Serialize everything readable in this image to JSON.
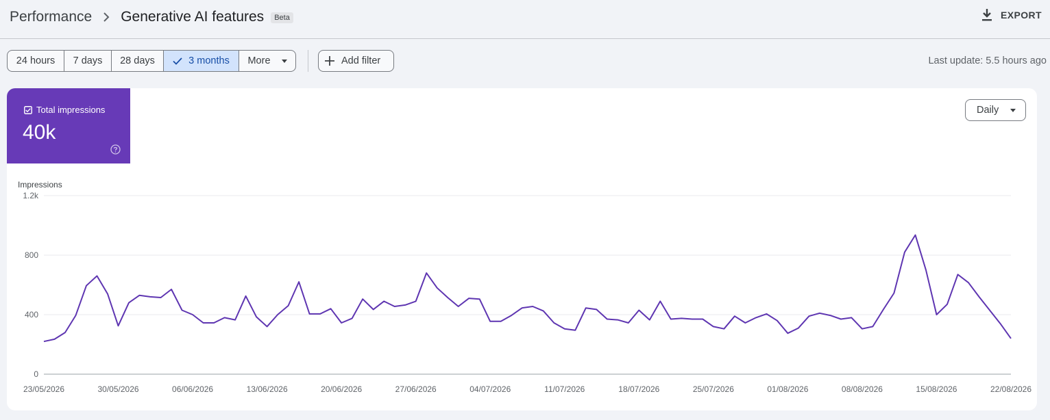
{
  "header": {
    "breadcrumb_root": "Performance",
    "title": "Generative AI features",
    "badge": "Beta",
    "export_label": "EXPORT"
  },
  "filters": {
    "ranges": [
      {
        "label": "24 hours",
        "active": false
      },
      {
        "label": "7 days",
        "active": false
      },
      {
        "label": "28 days",
        "active": false
      },
      {
        "label": "3 months",
        "active": true
      },
      {
        "label": "More",
        "active": false
      }
    ],
    "add_filter_label": "Add filter",
    "last_update": "Last update: 5.5 hours ago"
  },
  "metric": {
    "label": "Total impressions",
    "value": "40k",
    "checked": true,
    "color": "#673ab7"
  },
  "granularity": {
    "selected": "Daily"
  },
  "icons": [
    "chevron-right-icon",
    "download-icon",
    "check-icon",
    "caret-down-icon",
    "plus-icon",
    "checkbox-icon",
    "help-icon"
  ],
  "chart_data": {
    "type": "line",
    "ylabel": "Impressions",
    "ylim": [
      0,
      1200
    ],
    "yticks": [
      0,
      400,
      800,
      1200
    ],
    "ytick_labels": [
      "0",
      "400",
      "800",
      "1.2k"
    ],
    "xtick_labels": [
      "23/05/2026",
      "30/05/2026",
      "06/06/2026",
      "13/06/2026",
      "20/06/2026",
      "27/06/2026",
      "04/07/2026",
      "11/07/2026",
      "18/07/2026",
      "25/07/2026",
      "01/08/2026",
      "08/08/2026",
      "15/08/2026",
      "22/08/2026"
    ],
    "x_start": "23/05/2026",
    "x_end": "22/08/2026",
    "grid": true,
    "color": "#5e35b1",
    "series": [
      {
        "values": [
          220,
          235,
          280,
          395,
          595,
          660,
          540,
          325,
          480,
          530,
          520,
          515,
          570,
          430,
          400,
          345,
          345,
          380,
          365,
          525,
          385,
          320,
          400,
          460,
          620,
          405,
          405,
          440,
          345,
          375,
          505,
          435,
          490,
          455,
          465,
          490,
          680,
          580,
          515,
          455,
          510,
          505,
          355,
          355,
          395,
          445,
          455,
          425,
          345,
          305,
          295,
          445,
          435,
          370,
          365,
          345,
          430,
          365,
          490,
          370,
          375,
          370,
          370,
          320,
          305,
          390,
          345,
          380,
          405,
          360,
          275,
          310,
          390,
          410,
          395,
          370,
          380,
          305,
          320,
          435,
          545,
          820,
          935,
          700,
          400,
          470,
          670,
          615,
          520,
          430,
          340,
          240
        ]
      }
    ]
  }
}
